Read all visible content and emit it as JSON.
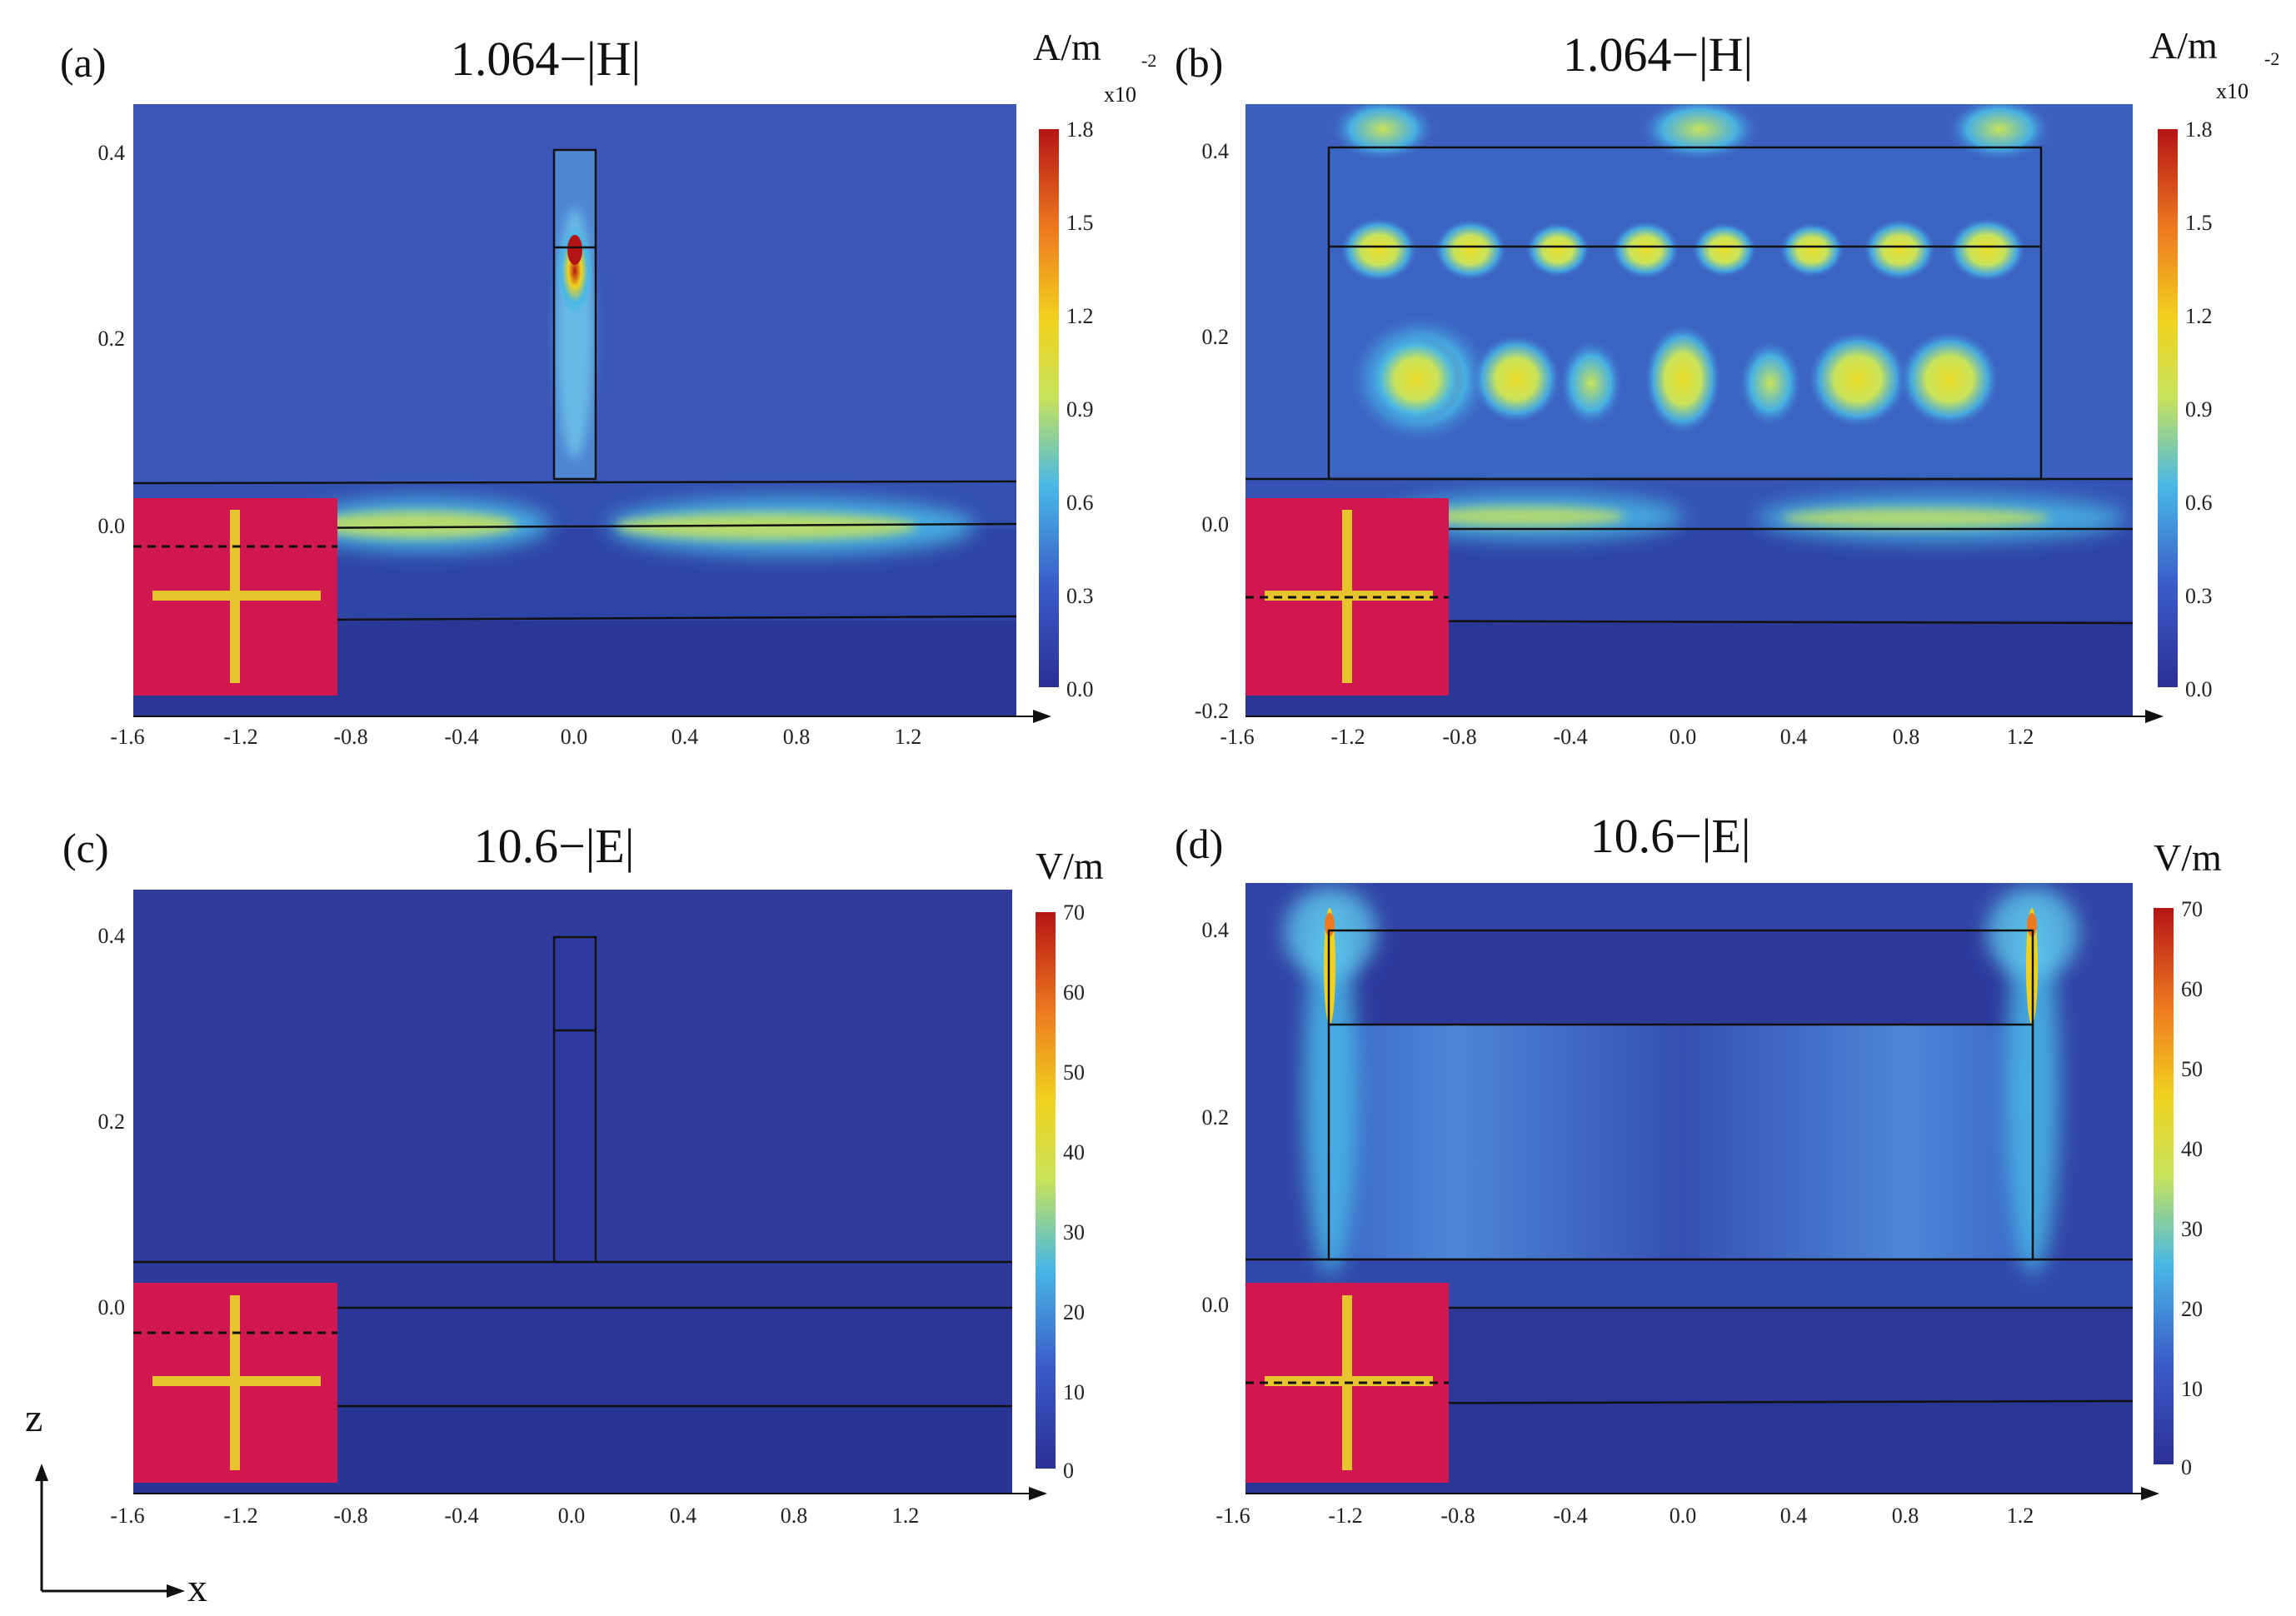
{
  "figure": {
    "axes_label": {
      "z": "z",
      "x": "x"
    },
    "panels": [
      {
        "id": "a",
        "label": "(a)",
        "title": "1.064−|H|",
        "unit": "A/m",
        "multiplier": "x10",
        "multiplier_exp": "-2",
        "field": "H",
        "wavelength_um": 1.064,
        "colorbar_ticks": [
          "1.8",
          "1.5",
          "1.2",
          "0.9",
          "0.6",
          "0.3",
          "0.0"
        ],
        "x_ticks": [
          "-1.6",
          "-1.2",
          "-0.8",
          "-0.4",
          "0.0",
          "0.4",
          "0.8",
          "1.2"
        ],
        "y_ticks": [
          "0.4",
          "0.2",
          "0.0"
        ],
        "structure": "narrow-ridge",
        "inset_line": "upper"
      },
      {
        "id": "b",
        "label": "(b)",
        "title": "1.064−|H|",
        "unit": "A/m",
        "multiplier": "x10",
        "multiplier_exp": "-2",
        "field": "H",
        "wavelength_um": 1.064,
        "colorbar_ticks": [
          "1.8",
          "1.5",
          "1.2",
          "0.9",
          "0.6",
          "0.3",
          "0.0"
        ],
        "x_ticks": [
          "-1.6",
          "-1.2",
          "-0.8",
          "-0.4",
          "0.0",
          "0.4",
          "0.8",
          "1.2"
        ],
        "y_ticks": [
          "0.4",
          "0.2",
          "0.0",
          "-0.2"
        ],
        "structure": "wide-ridge",
        "inset_line": "lower"
      },
      {
        "id": "c",
        "label": "(c)",
        "title": "10.6−|E|",
        "unit": "V/m",
        "multiplier": "",
        "multiplier_exp": "",
        "field": "E",
        "wavelength_um": 10.6,
        "colorbar_ticks": [
          "70",
          "60",
          "50",
          "40",
          "30",
          "20",
          "10",
          "0"
        ],
        "x_ticks": [
          "-1.6",
          "-1.2",
          "-0.8",
          "-0.4",
          "0.0",
          "0.4",
          "0.8",
          "1.2"
        ],
        "y_ticks": [
          "0.4",
          "0.2",
          "0.0"
        ],
        "structure": "narrow-ridge",
        "inset_line": "upper"
      },
      {
        "id": "d",
        "label": "(d)",
        "title": "10.6−|E|",
        "unit": "V/m",
        "multiplier": "",
        "multiplier_exp": "",
        "field": "E",
        "wavelength_um": 10.6,
        "colorbar_ticks": [
          "70",
          "60",
          "50",
          "40",
          "30",
          "20",
          "10",
          "0"
        ],
        "x_ticks": [
          "-1.6",
          "-1.2",
          "-0.8",
          "-0.4",
          "0.0",
          "0.4",
          "0.8",
          "1.2"
        ],
        "y_ticks": [
          "0.4",
          "0.2",
          "0.0"
        ],
        "structure": "wide-ridge",
        "inset_line": "lower"
      }
    ],
    "colors": {
      "background": "#3346a8",
      "substrate": "#2a3796",
      "inset": "#d0174f",
      "inset_cross": "#e7c42e",
      "outline": "#111111",
      "colormap": [
        "#2b2f95",
        "#3b5bc8",
        "#48b8e6",
        "#c9e35a",
        "#f0d21e",
        "#ee7a1f",
        "#b51414"
      ]
    }
  }
}
